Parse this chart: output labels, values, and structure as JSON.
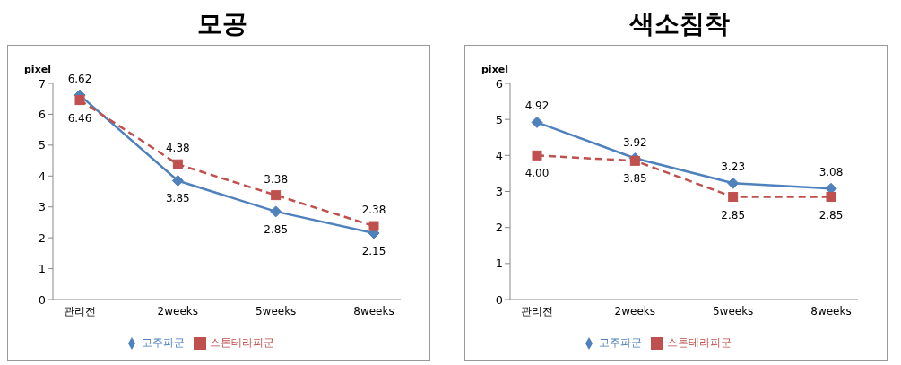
{
  "chart_data": [
    {
      "type": "line",
      "title": "모공",
      "ylabel": "pixel",
      "categories": [
        "관리전",
        "2weeks",
        "5weeks",
        "8weeks"
      ],
      "ylim": [
        0,
        7
      ],
      "yticks": [
        0,
        1,
        2,
        3,
        4,
        5,
        6,
        7
      ],
      "legend": "bottom",
      "series": [
        {
          "name": "고주파군",
          "color": "#4f81bd",
          "values": [
            6.62,
            3.85,
            2.85,
            2.15
          ],
          "value_labels": [
            "6.62",
            "3.85",
            "2.85",
            "2.15"
          ],
          "marker": "diamond",
          "line_style": "solid"
        },
        {
          "name": "스톤테라피군",
          "color": "#c0504d",
          "values": [
            6.46,
            4.38,
            3.38,
            2.38
          ],
          "value_labels": [
            "6.46",
            "4.38",
            "3.38",
            "2.38"
          ],
          "marker": "square",
          "line_style": "dashed"
        }
      ]
    },
    {
      "type": "line",
      "title": "색소침착",
      "ylabel": "pixel",
      "categories": [
        "관리전",
        "2weeks",
        "5weeks",
        "8weeks"
      ],
      "ylim": [
        0,
        6
      ],
      "yticks": [
        0,
        1,
        2,
        3,
        4,
        5,
        6
      ],
      "legend": "bottom",
      "series": [
        {
          "name": "고주파군",
          "color": "#4f81bd",
          "values": [
            4.92,
            3.92,
            3.23,
            3.08
          ],
          "value_labels": [
            "4.92",
            "3.92",
            "3.23",
            "3.08"
          ],
          "marker": "diamond",
          "line_style": "solid"
        },
        {
          "name": "스톤테라피군",
          "color": "#c0504d",
          "values": [
            4.0,
            3.85,
            2.85,
            2.85
          ],
          "value_labels": [
            "4.00",
            "3.85",
            "2.85",
            "2.85"
          ],
          "marker": "square",
          "line_style": "dashed"
        }
      ]
    }
  ]
}
